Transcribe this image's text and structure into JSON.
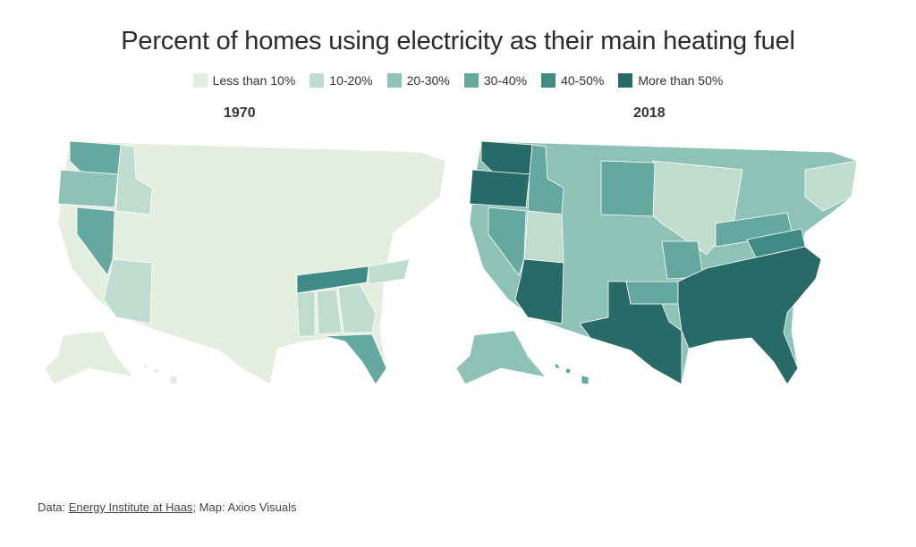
{
  "title": "Percent of homes using electricity as their main heating fuel",
  "legend": [
    {
      "label": "Less than 10%",
      "color": "#e3eedf"
    },
    {
      "label": "10-20%",
      "color": "#bfdccf"
    },
    {
      "label": "20-30%",
      "color": "#8fc2b6"
    },
    {
      "label": "30-40%",
      "color": "#64a8a0"
    },
    {
      "label": "40-50%",
      "color": "#3f8b86"
    },
    {
      "label": "More than 50%",
      "color": "#276a67"
    }
  ],
  "maps": [
    {
      "year": "1970"
    },
    {
      "year": "2018"
    }
  ],
  "footer": {
    "data_prefix": "Data: ",
    "source": "Energy Institute at Haas",
    "map_credit": "; Map: Axios Visuals"
  }
}
